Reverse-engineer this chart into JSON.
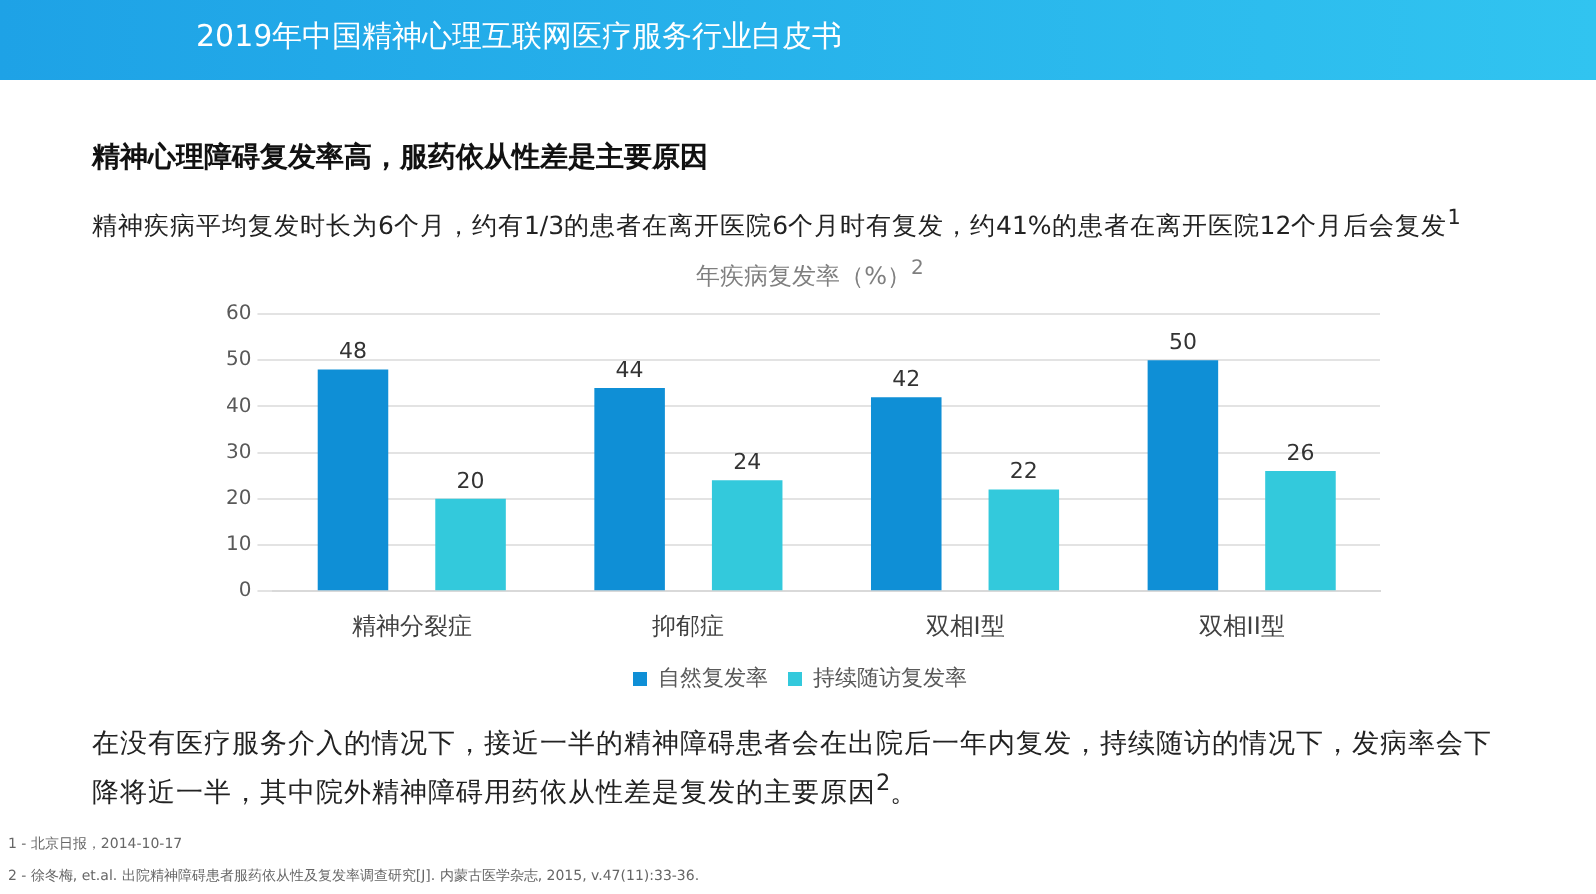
{
  "chart_data": {
    "type": "bar",
    "title": "年疾病复发率（%）$^{2}$",
    "subtitle": "精神心理障碍复发率高，服药依从性差是主要原因",
    "annotations": [
      "2019年中国精神心理互联网医疗服务行业白皮书",
      "精神疾病平均复发时长为6个月，约有1/3的患者在离开医院6个月时有复发，约41%的患者在离开医院12个月后会复发$^{1}$",
      "在没有医疗服务介入的情况下，接近一半的精神障碍患者会在出院后一年内复发，持续随访的情况下，发病率会下降将近一半，其中院外精神障碍用药依从性差是复发的主要原因$^{2}$。",
      "1 - 北京日报，2014-10-17",
      "2 - 徐冬梅, et.al. 出院精神障碍患者服药依从性及复发率调查研究[J]. 内蒙古医学杂志, 2015, v.47(11):33-36."
    ],
    "categories": [
      "精神分裂症",
      "抑郁症",
      "双相I型",
      "双相II型"
    ],
    "series": [
      {
        "name": "自然复发率",
        "color": "#0f8fd6",
        "values": [
          48,
          44,
          42,
          50
        ]
      },
      {
        "name": "持续随访复发率",
        "color": "#33c9dc",
        "values": [
          20,
          24,
          22,
          26
        ]
      }
    ],
    "ylim": [
      0,
      60
    ],
    "yticks": [
      0,
      10,
      20,
      30,
      40,
      50,
      60
    ],
    "grid": "y",
    "legend": "bottom",
    "data_labels": true
  }
}
